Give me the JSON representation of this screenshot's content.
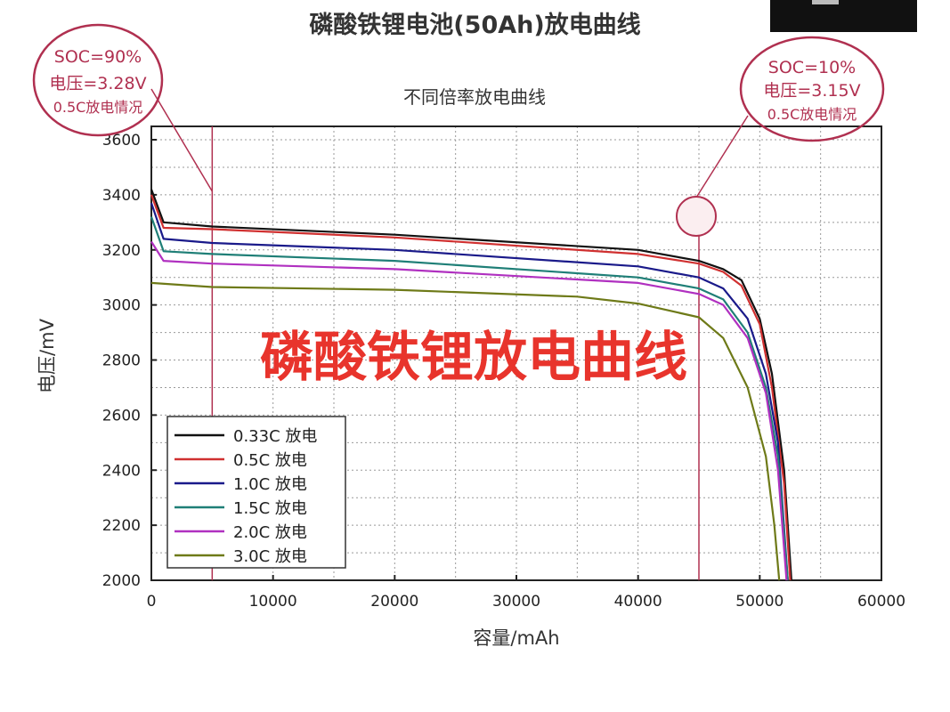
{
  "main_title": "磷酸铁锂电池(50Ah)放电曲线",
  "overlay_text": "磷酸铁锂放电曲线",
  "annotations": [
    {
      "lines": [
        "SOC=90%",
        "电压=3.28V",
        "0.5C放电情况"
      ],
      "x": 5000
    },
    {
      "lines": [
        "SOC=10%",
        "电压=3.15V",
        "0.5C放电情况"
      ],
      "x": 45000
    }
  ],
  "colors": {
    "annotation": "#b03050",
    "overlay": "#e8342c"
  },
  "chart_data": {
    "type": "line",
    "title": "不同倍率放电曲线",
    "xlabel": "容量/mAh",
    "ylabel": "电压/mV",
    "xlim": [
      0,
      60000
    ],
    "ylim": [
      2000,
      3600
    ],
    "xticks": [
      0,
      10000,
      20000,
      30000,
      40000,
      50000,
      60000
    ],
    "yticks": [
      2000,
      2200,
      2400,
      2600,
      2800,
      3000,
      3200,
      3400,
      3600
    ],
    "grid": true,
    "legend_position": "bottom-left",
    "series": [
      {
        "name": "0.33C 放电",
        "color": "#111111",
        "x": [
          0,
          1000,
          5000,
          20000,
          40000,
          45000,
          47000,
          48500,
          50000,
          51000,
          52000,
          52600
        ],
        "y": [
          3420,
          3300,
          3285,
          3255,
          3200,
          3160,
          3130,
          3090,
          2950,
          2750,
          2400,
          2000
        ]
      },
      {
        "name": "0.5C 放电",
        "color": "#d03030",
        "x": [
          0,
          1000,
          5000,
          20000,
          40000,
          45000,
          47000,
          48500,
          50000,
          51000,
          52000,
          52500
        ],
        "y": [
          3400,
          3280,
          3275,
          3245,
          3185,
          3150,
          3120,
          3070,
          2930,
          2700,
          2350,
          2000
        ]
      },
      {
        "name": "1.0C 放电",
        "color": "#1a1a8a",
        "x": [
          0,
          1000,
          5000,
          20000,
          40000,
          45000,
          47000,
          49000,
          50500,
          51500,
          52300
        ],
        "y": [
          3370,
          3240,
          3225,
          3200,
          3140,
          3100,
          3060,
          2950,
          2750,
          2500,
          2000
        ]
      },
      {
        "name": "1.5C 放电",
        "color": "#1f7f77",
        "x": [
          0,
          1000,
          5000,
          20000,
          40000,
          45000,
          47000,
          49000,
          50500,
          51500,
          52300
        ],
        "y": [
          3320,
          3195,
          3185,
          3160,
          3100,
          3060,
          3020,
          2900,
          2700,
          2450,
          2000
        ]
      },
      {
        "name": "2.0C 放电",
        "color": "#b030c0",
        "x": [
          0,
          1000,
          5000,
          20000,
          40000,
          45000,
          47000,
          49000,
          50500,
          51500,
          52200
        ],
        "y": [
          3230,
          3160,
          3150,
          3130,
          3080,
          3040,
          3000,
          2880,
          2680,
          2400,
          2000
        ]
      },
      {
        "name": "3.0C 放电",
        "color": "#6e7a18",
        "x": [
          0,
          5000,
          20000,
          35000,
          40000,
          45000,
          47000,
          49000,
          50500,
          51200,
          51600
        ],
        "y": [
          3080,
          3065,
          3055,
          3030,
          3005,
          2955,
          2880,
          2700,
          2450,
          2200,
          2000
        ]
      }
    ]
  }
}
